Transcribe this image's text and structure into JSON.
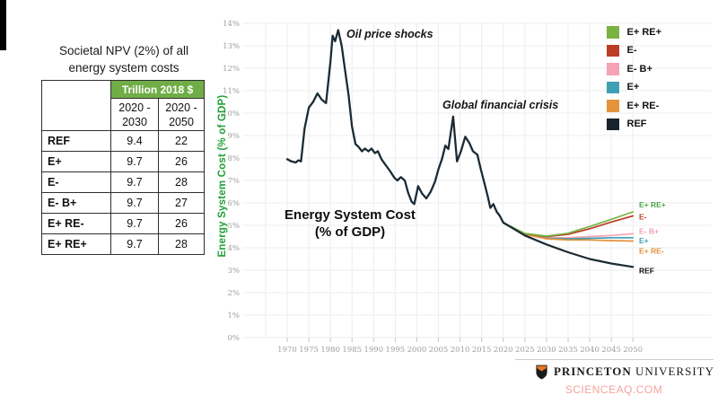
{
  "table": {
    "title_line1": "Societal NPV (2%) of all",
    "title_line2": "energy system costs",
    "unit_header": "Trillion 2018 $",
    "header_color": "#70ad47",
    "period_cols": [
      {
        "l1": "2020 -",
        "l2": "2030"
      },
      {
        "l1": "2020 -",
        "l2": "2050"
      }
    ],
    "rows": [
      {
        "label": "REF",
        "v2030": "9.4",
        "v2050": "22"
      },
      {
        "label": "E+",
        "v2030": "9.7",
        "v2050": "26"
      },
      {
        "label": "E-",
        "v2030": "9.7",
        "v2050": "28"
      },
      {
        "label": "E- B+",
        "v2030": "9.7",
        "v2050": "27"
      },
      {
        "label": "E+ RE-",
        "v2030": "9.7",
        "v2050": "26"
      },
      {
        "label": "E+ RE+",
        "v2030": "9.7",
        "v2050": "28"
      }
    ]
  },
  "chart_data": {
    "type": "line",
    "ylabel": "Energy System Cost (% of GDP)",
    "ylabel_color": "#22a038",
    "center_label_line1": "Energy System Cost",
    "center_label_line2": "(% of GDP)",
    "annotations": {
      "oil": "Oil price shocks",
      "gfc": "Global financial crisis"
    },
    "ylim": [
      0,
      14
    ],
    "y_ticks": [
      0,
      1,
      2,
      3,
      4,
      5,
      6,
      7,
      8,
      9,
      10,
      11,
      12,
      13,
      14
    ],
    "y_tick_suffix": "%",
    "x_ticks": [
      1970,
      1975,
      1980,
      1985,
      1990,
      1995,
      2000,
      2005,
      2010,
      2015,
      2020,
      2025,
      2030,
      2035,
      2040,
      2045,
      2050
    ],
    "grid_color": "#ededed",
    "historical": {
      "name": "Historical",
      "color": "#1b2b35",
      "x": [
        1970,
        1971,
        1972,
        1972.6,
        1973.2,
        1974,
        1975,
        1976,
        1977,
        1978,
        1979,
        1980,
        1980.5,
        1981.1,
        1981.8,
        1982.6,
        1983.4,
        1984.2,
        1985,
        1985.8,
        1986.5,
        1987.3,
        1988,
        1988.8,
        1989.5,
        1990.3,
        1991,
        1991.8,
        1992.8,
        1993.8,
        1994.8,
        1995.5,
        1996.3,
        1997.2,
        1998,
        1998.8,
        1999.4,
        2000.3,
        2001.2,
        2002.2,
        2003.2,
        2004.2,
        2005,
        2005.8,
        2006.6,
        2007.3,
        2008.4,
        2009.3,
        2010.2,
        2011.2,
        2012.2,
        2013,
        2014,
        2014.8,
        2015.6,
        2016.4,
        2017,
        2017.7,
        2018.5,
        2019.2,
        2020
      ],
      "values": [
        7.95,
        7.85,
        7.8,
        7.9,
        7.85,
        9.3,
        10.25,
        10.5,
        10.88,
        10.6,
        10.45,
        12.3,
        13.45,
        13.2,
        13.7,
        13.0,
        11.9,
        10.8,
        9.4,
        8.62,
        8.5,
        8.3,
        8.42,
        8.3,
        8.42,
        8.22,
        8.3,
        7.95,
        7.68,
        7.42,
        7.12,
        7.0,
        7.15,
        7.0,
        6.45,
        6.05,
        5.95,
        6.75,
        6.42,
        6.2,
        6.5,
        6.95,
        7.5,
        7.95,
        8.55,
        8.4,
        9.85,
        7.85,
        8.3,
        8.95,
        8.65,
        8.3,
        8.15,
        7.5,
        6.9,
        6.3,
        5.78,
        5.95,
        5.6,
        5.42,
        5.12
      ]
    },
    "series": [
      {
        "name": "E- B+",
        "color": "#f5a2b4",
        "label_color": "#f5a2b4",
        "x": [
          2020,
          2025,
          2030,
          2035,
          2040,
          2045,
          2050
        ],
        "values": [
          5.12,
          4.62,
          4.45,
          4.45,
          4.5,
          4.55,
          4.63
        ]
      },
      {
        "name": "E+",
        "color": "#3fa0b4",
        "label_color": "#3fa0b4",
        "x": [
          2020,
          2025,
          2030,
          2035,
          2040,
          2045,
          2050
        ],
        "values": [
          5.12,
          4.6,
          4.42,
          4.4,
          4.42,
          4.45,
          4.45
        ]
      },
      {
        "name": "E+ RE-",
        "color": "#e5923d",
        "label_color": "#e5923d",
        "x": [
          2020,
          2025,
          2030,
          2035,
          2040,
          2045,
          2050
        ],
        "values": [
          5.12,
          4.6,
          4.4,
          4.35,
          4.35,
          4.32,
          4.3
        ]
      },
      {
        "name": "E-",
        "color": "#bc3d26",
        "label_color": "#bc3d26",
        "x": [
          2020,
          2025,
          2030,
          2035,
          2040,
          2045,
          2050
        ],
        "values": [
          5.12,
          4.63,
          4.5,
          4.6,
          4.85,
          5.15,
          5.42
        ]
      },
      {
        "name": "E+ RE+",
        "color": "#79b343",
        "label_color": "#4ea648",
        "x": [
          2020,
          2025,
          2030,
          2035,
          2040,
          2045,
          2050
        ],
        "values": [
          5.12,
          4.64,
          4.52,
          4.65,
          4.95,
          5.27,
          5.6
        ]
      },
      {
        "name": "REF",
        "color": "#1b2b35",
        "label_color": "#111111",
        "x": [
          2020,
          2025,
          2030,
          2035,
          2040,
          2045,
          2050
        ],
        "values": [
          5.12,
          4.55,
          4.15,
          3.8,
          3.5,
          3.3,
          3.15
        ]
      }
    ],
    "legend": [
      {
        "label": "E+ RE+",
        "color": "#79b343"
      },
      {
        "label": "E-",
        "color": "#bc3d26"
      },
      {
        "label": "E- B+",
        "color": "#f5a2b4"
      },
      {
        "label": "E+",
        "color": "#3fa0b4"
      },
      {
        "label": "E+ RE-",
        "color": "#e5923d"
      },
      {
        "label": "REF",
        "color": "#17242e"
      }
    ]
  },
  "footer": {
    "brand_bold": "PRINCETON",
    "brand_regular": "UNIVERSITY",
    "watermark": "SCIENCEAQ.COM"
  }
}
